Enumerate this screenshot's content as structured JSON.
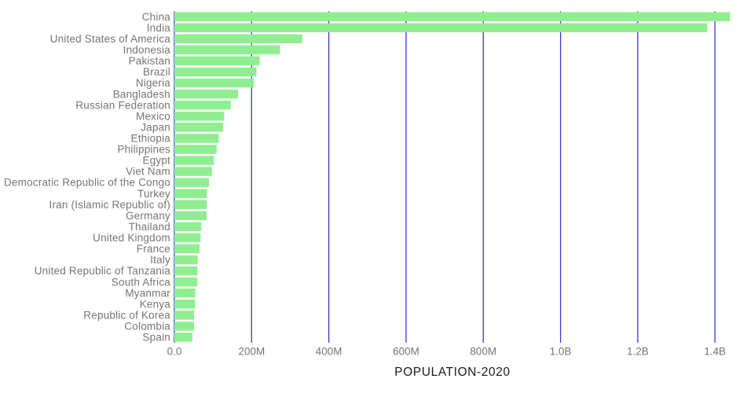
{
  "chart_data": {
    "type": "bar",
    "orientation": "horizontal",
    "title": "",
    "xlabel": "POPULATION-2020",
    "ylabel": "",
    "value_unit": "persons (millions)",
    "grid": "vertical",
    "legend": "none",
    "xlim_millions": [
      0,
      1500
    ],
    "categories": [
      "China",
      "India",
      "United States of America",
      "Indonesia",
      "Pakistan",
      "Brazil",
      "Nigeria",
      "Bangladesh",
      "Russian Federation",
      "Mexico",
      "Japan",
      "Ethiopia",
      "Philippines",
      "Egypt",
      "Viet Nam",
      "Democratic Republic of the Congo",
      "Turkey",
      "Iran (Islamic Republic of)",
      "Germany",
      "Thailand",
      "United Kingdom",
      "France",
      "Italy",
      "United Republic of Tanzania",
      "South Africa",
      "Myanmar",
      "Kenya",
      "Republic of Korea",
      "Colombia",
      "Spain"
    ],
    "values_millions": [
      1439.3,
      1380.0,
      331.0,
      273.5,
      220.9,
      212.6,
      206.1,
      164.7,
      145.9,
      128.9,
      126.5,
      115.0,
      109.6,
      102.3,
      97.3,
      89.6,
      84.3,
      84.0,
      83.8,
      69.8,
      67.9,
      65.3,
      60.5,
      59.7,
      59.3,
      54.4,
      53.8,
      51.3,
      50.9,
      46.8
    ],
    "x_ticks": [
      {
        "value_millions": 0,
        "label": "0.0"
      },
      {
        "value_millions": 200,
        "label": "200M"
      },
      {
        "value_millions": 400,
        "label": "400M"
      },
      {
        "value_millions": 600,
        "label": "600M"
      },
      {
        "value_millions": 800,
        "label": "800M"
      },
      {
        "value_millions": 1000,
        "label": "1.0B"
      },
      {
        "value_millions": 1200,
        "label": "1.2B"
      },
      {
        "value_millions": 1400,
        "label": "1.4B"
      }
    ],
    "colors": {
      "bar": "#90ee90",
      "gridline": "#3a3ad1",
      "y_label_text": "#757575",
      "x_tick_text": "#757575",
      "axis_title_text": "#1a1a1a",
      "background": "#ffffff"
    }
  }
}
